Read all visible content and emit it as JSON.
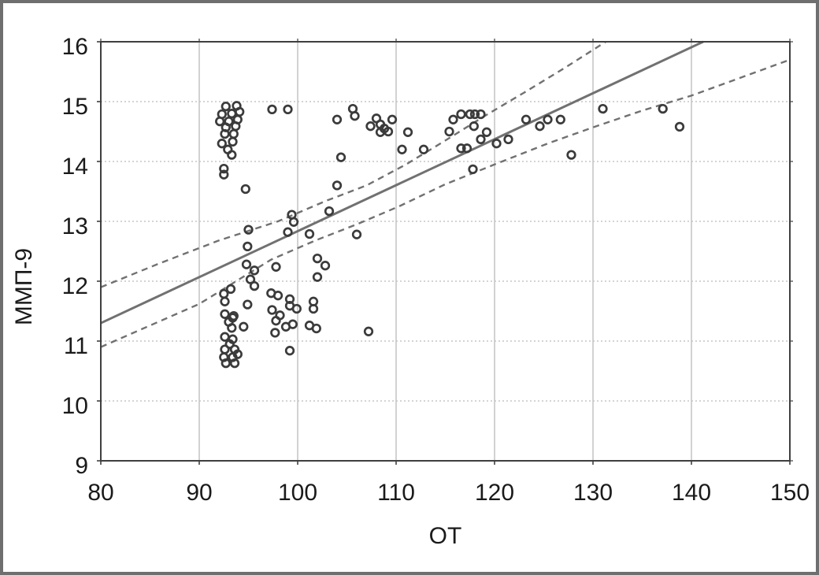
{
  "figure": {
    "background": "#ffffff",
    "frame_color": "#6f6f6f",
    "plot_border_color": "#3f3f3f",
    "grid_color": "#c6c6c6",
    "tick_color": "#3f3f3f",
    "text_color": "#1a1a1a",
    "marker_color": "#3b3b3b",
    "fit_line_color": "#717171"
  },
  "chart_data": {
    "type": "scatter",
    "title": "",
    "xlabel": "ОТ",
    "ylabel": "ММП-9",
    "xlim": [
      80,
      150
    ],
    "ylim": [
      9,
      16
    ],
    "xticks": [
      80,
      90,
      100,
      110,
      120,
      130,
      140,
      150
    ],
    "yticks": [
      9,
      10,
      11,
      12,
      13,
      14,
      15,
      16
    ],
    "grid": true,
    "legend": "none",
    "series": [
      {
        "name": "observations",
        "kind": "scatter",
        "marker": "open-circle",
        "points": [
          [
            92.7,
            14.92
          ],
          [
            93.8,
            14.93
          ],
          [
            92.3,
            14.79
          ],
          [
            93.3,
            14.8
          ],
          [
            94.1,
            14.83
          ],
          [
            92.1,
            14.67
          ],
          [
            93.0,
            14.67
          ],
          [
            93.9,
            14.7
          ],
          [
            92.7,
            14.57
          ],
          [
            93.7,
            14.59
          ],
          [
            92.6,
            14.46
          ],
          [
            93.5,
            14.46
          ],
          [
            92.3,
            14.3
          ],
          [
            93.4,
            14.33
          ],
          [
            92.9,
            14.2
          ],
          [
            93.3,
            14.11
          ],
          [
            92.5,
            13.88
          ],
          [
            92.5,
            13.78
          ],
          [
            94.7,
            13.54
          ],
          [
            97.4,
            14.87
          ],
          [
            99.0,
            14.87
          ],
          [
            95.0,
            12.86
          ],
          [
            94.9,
            12.58
          ],
          [
            94.8,
            12.28
          ],
          [
            95.6,
            12.18
          ],
          [
            95.2,
            12.03
          ],
          [
            95.6,
            11.92
          ],
          [
            94.9,
            11.61
          ],
          [
            93.2,
            11.87
          ],
          [
            92.5,
            11.79
          ],
          [
            92.6,
            11.66
          ],
          [
            97.8,
            12.24
          ],
          [
            99.0,
            12.82
          ],
          [
            99.4,
            13.11
          ],
          [
            99.6,
            12.99
          ],
          [
            101.2,
            12.79
          ],
          [
            97.3,
            11.8
          ],
          [
            98.0,
            11.76
          ],
          [
            99.2,
            11.7
          ],
          [
            99.2,
            11.59
          ],
          [
            99.9,
            11.54
          ],
          [
            97.4,
            11.52
          ],
          [
            98.2,
            11.43
          ],
          [
            97.8,
            11.34
          ],
          [
            97.7,
            11.14
          ],
          [
            98.8,
            11.24
          ],
          [
            99.5,
            11.28
          ],
          [
            99.2,
            10.84
          ],
          [
            102.0,
            12.38
          ],
          [
            102.8,
            12.26
          ],
          [
            102.0,
            12.07
          ],
          [
            101.6,
            11.66
          ],
          [
            101.6,
            11.54
          ],
          [
            101.2,
            11.26
          ],
          [
            101.9,
            11.21
          ],
          [
            103.2,
            13.17
          ],
          [
            104.0,
            13.6
          ],
          [
            104.0,
            14.7
          ],
          [
            104.4,
            14.07
          ],
          [
            105.6,
            14.88
          ],
          [
            105.8,
            14.76
          ],
          [
            106.0,
            12.78
          ],
          [
            92.6,
            11.45
          ],
          [
            93.5,
            11.42
          ],
          [
            93.0,
            11.32
          ],
          [
            93.3,
            11.22
          ],
          [
            94.5,
            11.24
          ],
          [
            92.6,
            11.07
          ],
          [
            93.4,
            11.03
          ],
          [
            92.6,
            10.86
          ],
          [
            93.6,
            10.86
          ],
          [
            92.5,
            10.73
          ],
          [
            93.4,
            10.73
          ],
          [
            92.7,
            10.63
          ],
          [
            93.6,
            10.63
          ],
          [
            93.1,
            10.95
          ],
          [
            93.9,
            10.78
          ],
          [
            93.4,
            11.39
          ],
          [
            107.4,
            14.59
          ],
          [
            108.0,
            14.72
          ],
          [
            108.4,
            14.62
          ],
          [
            108.8,
            14.55
          ],
          [
            108.4,
            14.49
          ],
          [
            109.2,
            14.5
          ],
          [
            109.6,
            14.7
          ],
          [
            111.2,
            14.49
          ],
          [
            110.6,
            14.2
          ],
          [
            112.8,
            14.2
          ],
          [
            115.4,
            14.5
          ],
          [
            115.8,
            14.7
          ],
          [
            116.6,
            14.79
          ],
          [
            117.5,
            14.79
          ],
          [
            118.0,
            14.79
          ],
          [
            118.6,
            14.79
          ],
          [
            117.9,
            14.59
          ],
          [
            119.2,
            14.49
          ],
          [
            118.6,
            14.37
          ],
          [
            116.6,
            14.22
          ],
          [
            117.2,
            14.22
          ],
          [
            117.8,
            13.87
          ],
          [
            120.2,
            14.3
          ],
          [
            121.4,
            14.37
          ],
          [
            123.2,
            14.7
          ],
          [
            124.6,
            14.59
          ],
          [
            125.4,
            14.7
          ],
          [
            126.7,
            14.7
          ],
          [
            127.8,
            14.11
          ],
          [
            131.0,
            14.88
          ],
          [
            137.1,
            14.88
          ],
          [
            138.8,
            14.58
          ],
          [
            107.2,
            11.16
          ]
        ]
      },
      {
        "name": "regression-line",
        "kind": "line",
        "style": "solid",
        "points": [
          [
            80,
            11.3
          ],
          [
            141.2,
            16.0
          ]
        ]
      },
      {
        "name": "confidence-band-upper",
        "kind": "line",
        "style": "dashed",
        "points": [
          [
            80,
            11.9
          ],
          [
            86,
            12.3
          ],
          [
            92,
            12.68
          ],
          [
            98,
            13.0
          ],
          [
            103,
            13.35
          ],
          [
            107,
            13.6
          ],
          [
            111,
            13.95
          ],
          [
            115,
            14.35
          ],
          [
            119,
            14.76
          ],
          [
            123,
            15.15
          ],
          [
            127,
            15.55
          ],
          [
            131.3,
            16.0
          ]
        ]
      },
      {
        "name": "confidence-band-lower",
        "kind": "line",
        "style": "dashed",
        "points": [
          [
            80,
            10.9
          ],
          [
            90,
            11.62
          ],
          [
            97.3,
            12.36
          ],
          [
            101.8,
            12.68
          ],
          [
            106,
            12.95
          ],
          [
            110.3,
            13.25
          ],
          [
            115,
            13.62
          ],
          [
            120,
            13.95
          ],
          [
            125.4,
            14.3
          ],
          [
            130,
            14.57
          ],
          [
            135,
            14.85
          ],
          [
            140,
            15.1
          ],
          [
            145,
            15.4
          ],
          [
            150,
            15.7
          ]
        ]
      }
    ]
  }
}
